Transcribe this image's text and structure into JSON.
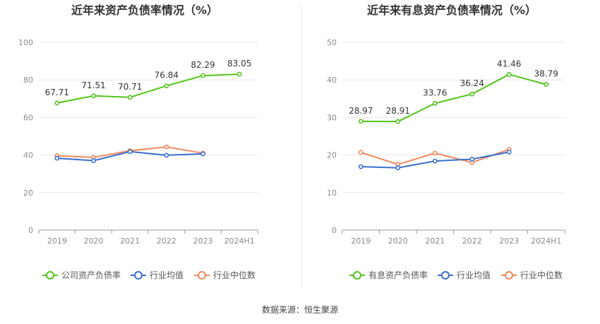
{
  "source_text": "数据来源：恒生聚源",
  "chart_data": [
    {
      "type": "line",
      "title": "近年来资产负债率情况（%）",
      "categories": [
        "2019",
        "2020",
        "2021",
        "2022",
        "2023",
        "2024H1"
      ],
      "ylim": [
        0,
        100
      ],
      "yticks": [
        0,
        20,
        40,
        60,
        80,
        100
      ],
      "grid": true,
      "legend_position": "bottom",
      "series": [
        {
          "name": "公司资产负债率",
          "color": "#52c41a",
          "values": [
            67.71,
            71.51,
            70.71,
            76.84,
            82.29,
            83.05
          ],
          "labels": [
            "67.71",
            "71.51",
            "70.71",
            "76.84",
            "82.29",
            "83.05"
          ]
        },
        {
          "name": "行业均值",
          "color": "#3a6fd0",
          "values": [
            38.3,
            37.0,
            41.8,
            39.9,
            40.6,
            null
          ]
        },
        {
          "name": "行业中位数",
          "color": "#f08a5d",
          "values": [
            39.6,
            38.7,
            42.3,
            44.3,
            41.0,
            null
          ]
        }
      ]
    },
    {
      "type": "line",
      "title": "近年来有息资产负债率情况（%）",
      "categories": [
        "2019",
        "2020",
        "2021",
        "2022",
        "2023",
        "2024H1"
      ],
      "ylim": [
        0,
        50
      ],
      "yticks": [
        0,
        10,
        20,
        30,
        40,
        50
      ],
      "grid": true,
      "legend_position": "bottom",
      "series": [
        {
          "name": "有息资产负债率",
          "color": "#52c41a",
          "values": [
            28.97,
            28.91,
            33.76,
            36.24,
            41.46,
            38.79
          ],
          "labels": [
            "28.97",
            "28.91",
            "33.76",
            "36.24",
            "41.46",
            "38.79"
          ]
        },
        {
          "name": "行业均值",
          "color": "#3a6fd0",
          "values": [
            16.9,
            16.6,
            18.4,
            18.9,
            20.8,
            null
          ]
        },
        {
          "name": "行业中位数",
          "color": "#f08a5d",
          "values": [
            20.7,
            17.5,
            20.5,
            18.0,
            21.5,
            null
          ]
        }
      ]
    }
  ]
}
